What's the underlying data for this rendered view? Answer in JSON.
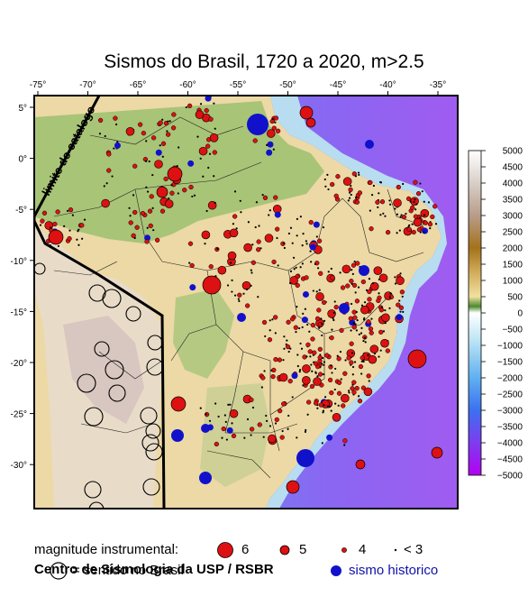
{
  "title": "Sismos do Brasil, 1720 a 2020, m>2.5",
  "lon_ticks": [
    "-75°",
    "-70°",
    "-65°",
    "-60°",
    "-55°",
    "-50°",
    "-45°",
    "-40°",
    "-35°"
  ],
  "lat_ticks": [
    "5°",
    "0°",
    "-5°",
    "-10°",
    "-15°",
    "-20°",
    "-25°",
    "-30°"
  ],
  "catalog_limit_label": "limite do catalogo",
  "colorbar": {
    "labels": [
      "5000",
      "4500",
      "4000",
      "3500",
      "3000",
      "2500",
      "2000",
      "1500",
      "1000",
      "500",
      "0",
      "−500",
      "−1000",
      "−1500",
      "−2000",
      "−2500",
      "−3000",
      "−3500",
      "−4000",
      "−4500",
      "−5000"
    ]
  },
  "legend": {
    "instrumental_label": "magnitude instrumental:",
    "mag6": "6",
    "mag5": "5",
    "mag4": "4",
    "mag3": "< 3",
    "felt_label": "= sentido no Brasil",
    "historic_label": "sismo historico"
  },
  "credit": "Centro de Sismologia da USP / RSBR",
  "colors": {
    "instrumental": "#dd1111",
    "historic": "#1111cc",
    "land_low": "#f2deb0",
    "ocean_shallow": "#b8ddf0",
    "ocean_deep": "#9a5cf0"
  }
}
